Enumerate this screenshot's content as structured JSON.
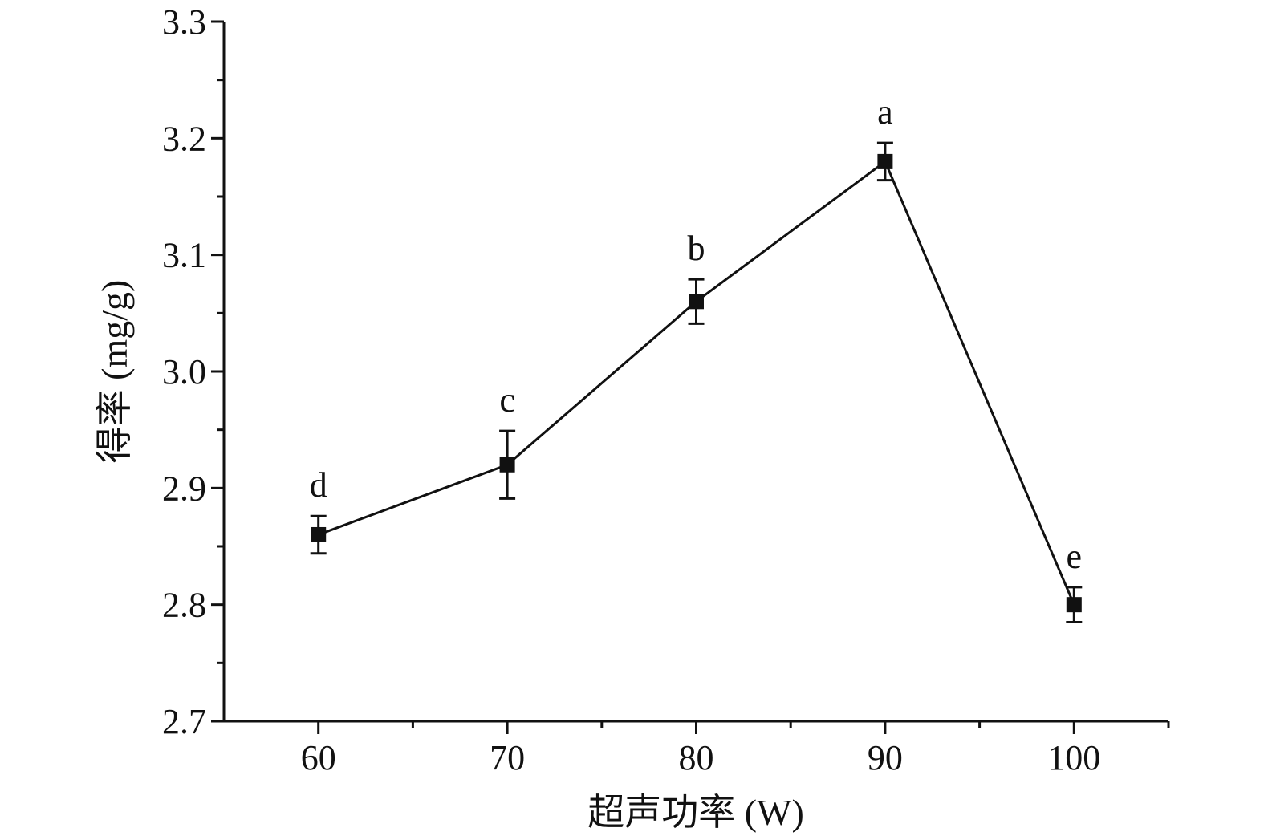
{
  "chart_data": {
    "type": "line",
    "xlabel": "超声功率 (W)",
    "ylabel": "得率 (mg/g)",
    "xlim": [
      55,
      105
    ],
    "ylim": [
      2.7,
      3.3
    ],
    "x_ticks": [
      60,
      70,
      80,
      90,
      100
    ],
    "x_tick_labels": [
      "60",
      "70",
      "80",
      "90",
      "100"
    ],
    "x_minor_ticks": [
      65,
      75,
      85,
      95,
      105
    ],
    "y_ticks": [
      2.7,
      2.8,
      2.9,
      3.0,
      3.1,
      3.2,
      3.3
    ],
    "y_tick_labels": [
      "2.7",
      "2.8",
      "2.9",
      "3.0",
      "3.1",
      "3.2",
      "3.3"
    ],
    "y_minor_ticks": [
      2.75,
      2.85,
      2.95,
      3.05,
      3.15,
      3.25
    ],
    "grid": false,
    "series": [
      {
        "marker": "square",
        "color": "#111111",
        "x": [
          60,
          70,
          80,
          90,
          100
        ],
        "y": [
          2.86,
          2.92,
          3.06,
          3.18,
          2.8
        ],
        "error": [
          0.016,
          0.029,
          0.019,
          0.016,
          0.015
        ],
        "labels": [
          "d",
          "c",
          "b",
          "a",
          "e"
        ]
      }
    ]
  }
}
